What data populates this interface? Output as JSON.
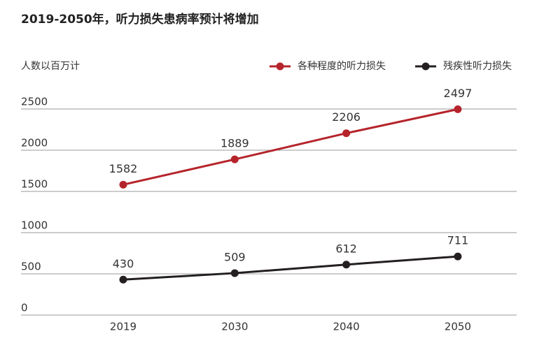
{
  "chart_data": {
    "type": "line",
    "title": "2019-2050年，听力损失患病率预计将增加",
    "y_label": "人数以百万计",
    "categories": [
      "2019",
      "2030",
      "2040",
      "2050"
    ],
    "series": [
      {
        "name": "各种程度的听力损失",
        "color": "#b5242b",
        "values": [
          1582,
          1889,
          2206,
          2497
        ]
      },
      {
        "name": "残疾性听力损失",
        "color": "#231f20",
        "values": [
          430,
          509,
          612,
          711
        ]
      }
    ],
    "ylim": [
      0,
      2500
    ],
    "yticks": [
      0,
      500,
      1000,
      1500,
      2000,
      2500
    ],
    "grid": true,
    "legend": "top-right"
  }
}
